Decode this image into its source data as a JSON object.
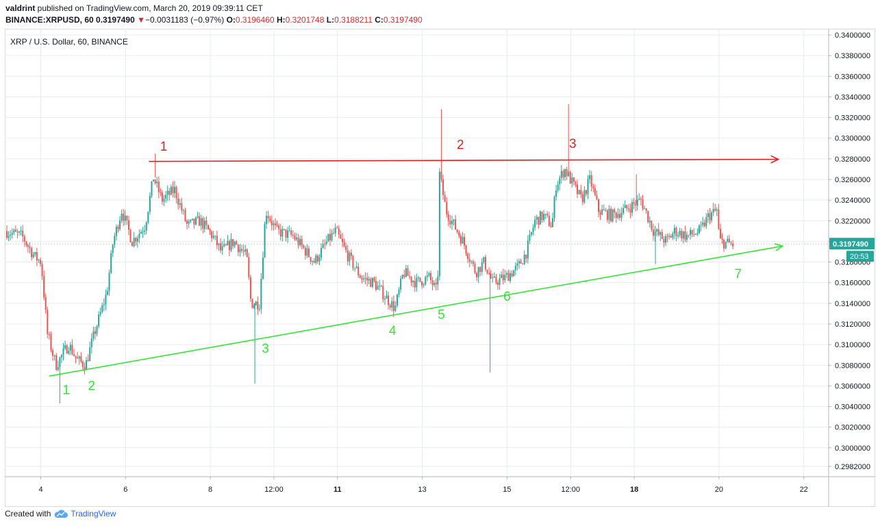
{
  "header": {
    "author": "valdrint",
    "published_text": " published on TradingView.com, March 20, 2019 09:39:11 CET",
    "symbol": "BINANCE:XRPUSD, 60",
    "last": "0.3197490",
    "change_arrow": "▼",
    "change": "−0.0031183 (−0.97%)",
    "o_label": "O:",
    "o_value": "0.3196460",
    "h_label": "H:",
    "h_value": "0.3201748",
    "l_label": "L:",
    "l_value": "0.3188211",
    "c_label": "C:",
    "c_value": "0.3197490"
  },
  "footer": {
    "created_text": "Created with",
    "brand": "TradingView",
    "brand_icon": "tradingview-cloud-icon"
  },
  "colors": {
    "up": "#26a69a",
    "down": "#ef5350",
    "resistance": "#e02020",
    "support": "#33e633",
    "price_label_bg": "#26a69a",
    "grid": "#e8ebf0"
  },
  "chart_data": {
    "type": "candlestick",
    "title": "XRP / U.S. Dollar, 60, BINANCE",
    "ylim": [
      0.2972,
      0.3406
    ],
    "y_ticks": [
      "0.3400000",
      "0.3380000",
      "0.3360000",
      "0.3340000",
      "0.3320000",
      "0.3300000",
      "0.3280000",
      "0.3260000",
      "0.3240000",
      "0.3220000",
      "0.3200000",
      "0.3180000",
      "0.3160000",
      "0.3140000",
      "0.3120000",
      "0.3100000",
      "0.3080000",
      "0.3060000",
      "0.3040000",
      "0.3020000",
      "0.3000000",
      "0.2982000"
    ],
    "x_ticks": [
      {
        "label": "4",
        "day": 4.0,
        "bold": false
      },
      {
        "label": "6",
        "day": 6.0,
        "bold": false
      },
      {
        "label": "8",
        "day": 8.0,
        "bold": false
      },
      {
        "label": "12:00",
        "day": 9.5,
        "bold": false
      },
      {
        "label": "11",
        "day": 11.0,
        "bold": true
      },
      {
        "label": "13",
        "day": 13.0,
        "bold": false
      },
      {
        "label": "15",
        "day": 15.0,
        "bold": false
      },
      {
        "label": "12:00",
        "day": 16.5,
        "bold": false
      },
      {
        "label": "18",
        "day": 18.0,
        "bold": true
      },
      {
        "label": "20",
        "day": 20.0,
        "bold": false
      },
      {
        "label": "22",
        "day": 22.0,
        "bold": false
      }
    ],
    "price_keypoints": [
      [
        3.2,
        0.321
      ],
      [
        3.6,
        0.3205
      ],
      [
        3.9,
        0.3185
      ],
      [
        4.05,
        0.318
      ],
      [
        4.2,
        0.311
      ],
      [
        4.4,
        0.308
      ],
      [
        4.7,
        0.31
      ],
      [
        4.9,
        0.3085
      ],
      [
        5.1,
        0.308
      ],
      [
        5.3,
        0.311
      ],
      [
        5.6,
        0.315
      ],
      [
        5.75,
        0.32
      ],
      [
        5.95,
        0.323
      ],
      [
        6.2,
        0.32
      ],
      [
        6.5,
        0.3215
      ],
      [
        6.7,
        0.3262
      ],
      [
        6.9,
        0.324
      ],
      [
        7.2,
        0.325
      ],
      [
        7.5,
        0.3215
      ],
      [
        7.8,
        0.322
      ],
      [
        8.1,
        0.3205
      ],
      [
        8.3,
        0.319
      ],
      [
        8.6,
        0.32
      ],
      [
        8.9,
        0.3185
      ],
      [
        9.0,
        0.314
      ],
      [
        9.2,
        0.314
      ],
      [
        9.35,
        0.323
      ],
      [
        9.6,
        0.321
      ],
      [
        10.0,
        0.3205
      ],
      [
        10.3,
        0.319
      ],
      [
        10.5,
        0.318
      ],
      [
        10.8,
        0.32
      ],
      [
        11.0,
        0.321
      ],
      [
        11.3,
        0.3185
      ],
      [
        11.6,
        0.3165
      ],
      [
        11.9,
        0.316
      ],
      [
        12.2,
        0.3145
      ],
      [
        12.4,
        0.3135
      ],
      [
        12.6,
        0.317
      ],
      [
        12.9,
        0.316
      ],
      [
        13.2,
        0.3165
      ],
      [
        13.4,
        0.315
      ],
      [
        13.45,
        0.3265
      ],
      [
        13.6,
        0.323
      ],
      [
        14.0,
        0.32
      ],
      [
        14.3,
        0.317
      ],
      [
        14.5,
        0.318
      ],
      [
        14.7,
        0.316
      ],
      [
        15.0,
        0.3165
      ],
      [
        15.3,
        0.3175
      ],
      [
        15.5,
        0.319
      ],
      [
        15.7,
        0.322
      ],
      [
        15.9,
        0.3225
      ],
      [
        16.1,
        0.3215
      ],
      [
        16.2,
        0.3255
      ],
      [
        16.4,
        0.327
      ],
      [
        16.6,
        0.3255
      ],
      [
        16.8,
        0.324
      ],
      [
        17.0,
        0.326
      ],
      [
        17.2,
        0.323
      ],
      [
        17.5,
        0.3225
      ],
      [
        17.8,
        0.323
      ],
      [
        18.0,
        0.3235
      ],
      [
        18.2,
        0.324
      ],
      [
        18.5,
        0.321
      ],
      [
        18.8,
        0.32
      ],
      [
        19.0,
        0.321
      ],
      [
        19.3,
        0.3205
      ],
      [
        19.6,
        0.321
      ],
      [
        19.8,
        0.3225
      ],
      [
        20.0,
        0.323
      ],
      [
        20.05,
        0.32
      ],
      [
        20.35,
        0.3197
      ]
    ],
    "spikes": [
      {
        "day": 4.45,
        "low": 0.3043
      },
      {
        "day": 9.05,
        "low": 0.3062
      },
      {
        "day": 13.45,
        "high": 0.3328
      },
      {
        "day": 14.6,
        "low": 0.3073
      },
      {
        "day": 16.45,
        "high": 0.3333
      },
      {
        "day": 6.7,
        "high": 0.3285
      },
      {
        "day": 18.05,
        "high": 0.3265
      },
      {
        "day": 18.5,
        "low": 0.3178
      }
    ],
    "last_price": {
      "label": "0.3197490",
      "countdown": "20:53",
      "value": 0.319749
    },
    "resistance_line": {
      "start": [
        6.55,
        0.32775
      ],
      "end": [
        21.4,
        0.32795
      ],
      "color": "red"
    },
    "support_line": {
      "start": [
        4.2,
        0.30695
      ],
      "end": [
        21.5,
        0.31955
      ],
      "color": "green"
    },
    "annotations": [
      {
        "text": "1",
        "day": 6.9,
        "price": 0.3288,
        "color": "red"
      },
      {
        "text": "2",
        "day": 13.9,
        "price": 0.32895,
        "color": "red"
      },
      {
        "text": "3",
        "day": 16.55,
        "price": 0.32905,
        "color": "red"
      },
      {
        "text": "1",
        "day": 4.6,
        "price": 0.3052,
        "color": "green"
      },
      {
        "text": "2",
        "day": 5.2,
        "price": 0.3056,
        "color": "green"
      },
      {
        "text": "3",
        "day": 9.3,
        "price": 0.3092,
        "color": "green"
      },
      {
        "text": "4",
        "day": 12.3,
        "price": 0.31095,
        "color": "green"
      },
      {
        "text": "5",
        "day": 13.45,
        "price": 0.3125,
        "color": "green"
      },
      {
        "text": "6",
        "day": 15.0,
        "price": 0.31425,
        "color": "green"
      },
      {
        "text": "7",
        "day": 20.45,
        "price": 0.31645,
        "color": "green"
      }
    ]
  }
}
